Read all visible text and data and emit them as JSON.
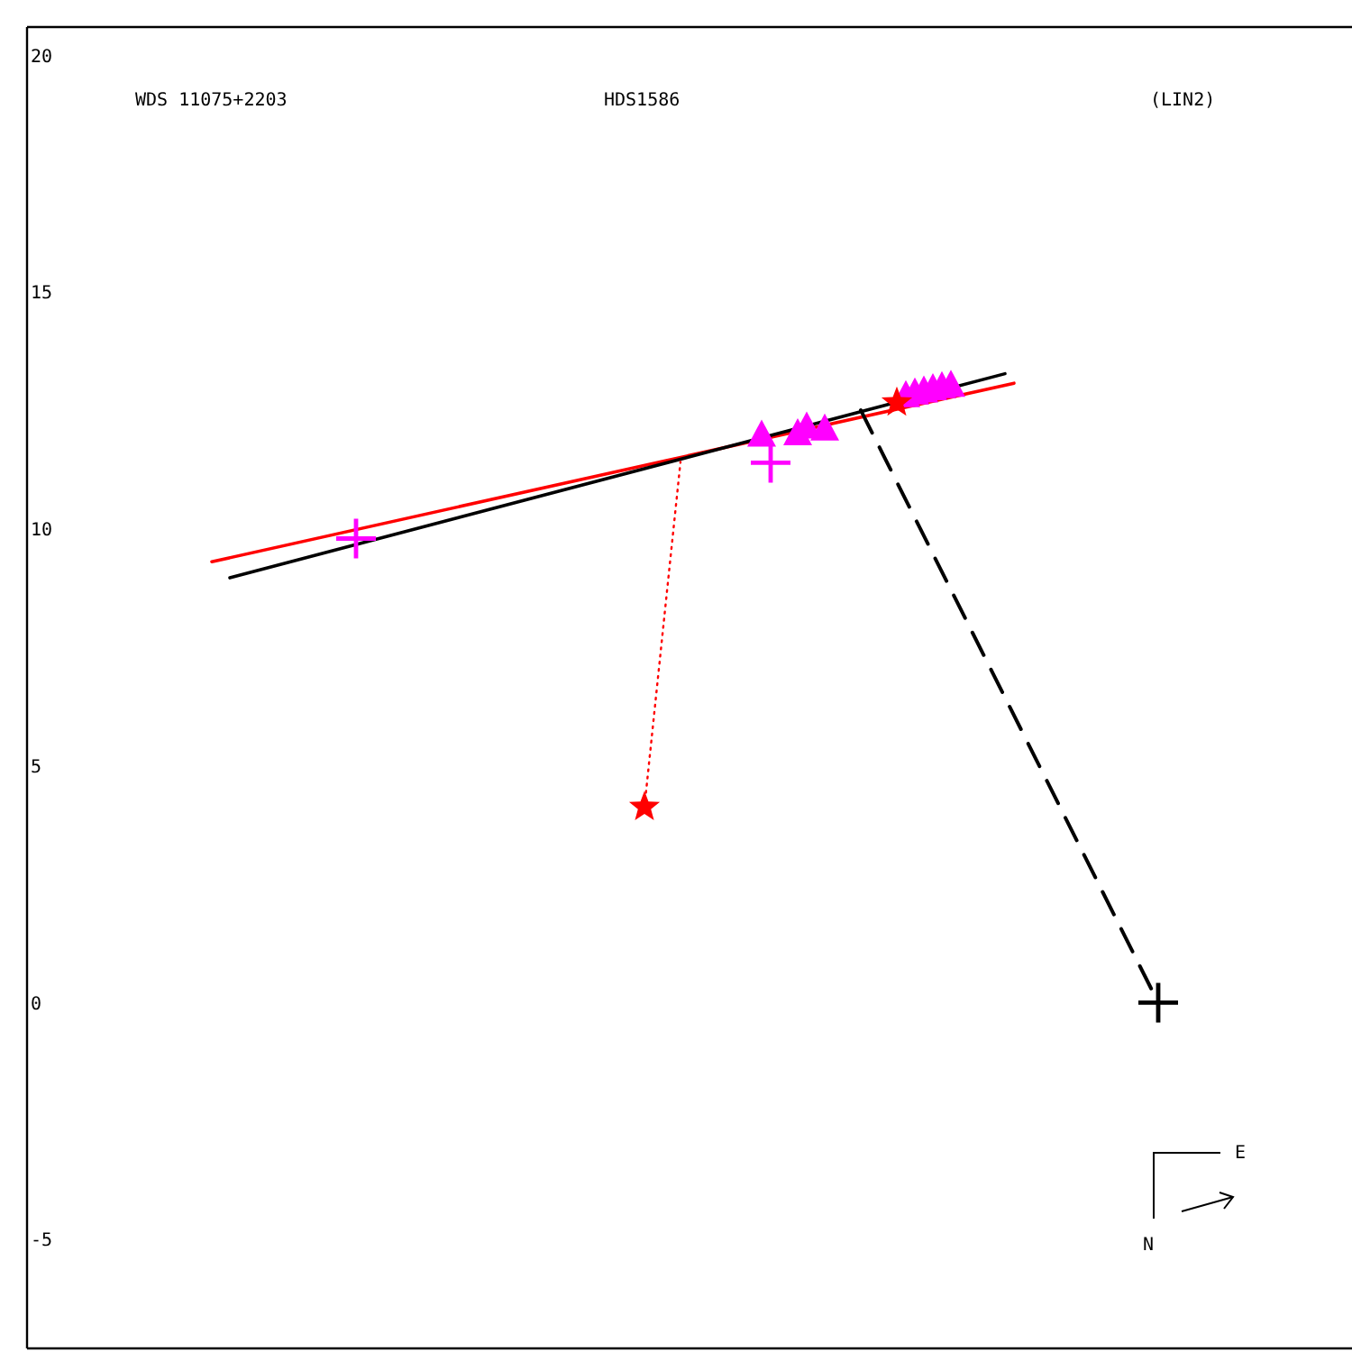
{
  "chart_data": {
    "type": "scatter",
    "title": "WDS 11075+2203",
    "subtitle": "HDS1586",
    "annotations": [
      "(LIN2)",
      "E",
      "N"
    ],
    "categories": [
      null,
      null,
      null,
      null,
      null,
      null,
      null,
      null,
      null,
      null,
      null,
      null,
      null,
      null,
      null,
      null,
      null,
      null,
      null,
      null,
      null,
      null,
      null,
      null,
      null,
      null,
      null,
      null,
      null,
      null,
      null,
      null,
      null,
      null,
      null,
      null,
      null,
      null,
      null,
      null,
      null,
      null,
      null,
      null,
      null,
      null,
      null,
      null,
      null,
      null,
      null,
      null,
      null,
      null,
      null,
      null,
      null,
      null,
      null,
      null,
      null,
      null,
      null,
      null,
      null,
      null,
      null,
      null,
      null,
      null,
      null,
      null,
      null,
      null,
      null,
      null,
      null,
      null,
      null,
      null,
      null,
      null,
      null,
      null,
      null,
      null,
      null,
      null,
      null,
      null,
      null,
      null,
      null,
      null,
      null,
      null,
      null,
      null,
      null,
      null,
      null,
      null,
      null,
      null,
      null,
      null,
      null,
      null,
      null,
      null,
      null,
      null,
      null,
      null,
      null,
      null,
      null,
      null,
      null,
      null,
      null,
      null,
      null,
      null,
      null,
      null,
      null,
      null,
      null,
      null,
      null,
      null,
      null,
      null,
      null,
      null,
      null,
      null,
      null,
      null,
      null,
      null,
      null,
      null,
      null,
      null,
      null
    ],
    "ylim": [
      -7.3,
      20.6
    ],
    "yticks": [
      -5,
      0,
      5,
      10,
      15,
      20
    ],
    "tick_labels": "y",
    "grid": false,
    "series": [
      {
        "type": "scatter",
        "marker": "triangle",
        "color": "#ff00ff",
        "values": [
          null,
          null,
          null,
          null,
          null,
          null,
          null,
          null,
          null,
          null,
          null,
          null,
          null,
          null,
          null,
          null,
          null,
          null,
          null,
          null,
          null,
          null,
          null,
          null,
          null,
          null,
          null,
          null,
          null,
          null,
          null,
          null,
          null,
          null,
          null,
          null,
          null,
          null,
          null,
          null,
          null,
          null,
          null,
          null,
          null,
          null,
          null,
          null,
          null,
          null,
          null,
          null,
          null,
          null,
          null,
          null,
          null,
          null,
          null,
          null,
          null,
          null,
          null,
          null,
          null,
          null,
          null,
          null,
          null,
          null,
          null,
          null,
          null,
          null,
          null,
          null,
          null,
          null,
          null,
          null,
          null,
          11.97,
          null,
          null,
          null,
          12.0,
          12.14,
          null,
          12.1,
          null,
          null,
          null,
          null,
          null,
          null,
          null,
          null,
          12.8,
          12.86,
          12.9,
          12.95,
          12.99,
          13.02,
          null,
          null,
          null,
          null,
          null,
          null,
          null,
          null,
          null,
          null,
          null,
          null,
          null,
          null,
          null,
          null,
          null,
          null,
          null,
          null,
          null,
          null,
          null,
          null,
          null,
          null,
          null,
          null,
          null,
          null,
          null,
          null,
          null,
          null,
          null,
          null,
          null,
          null,
          null,
          null,
          null,
          null,
          null,
          null
        ]
      },
      {
        "type": "scatter",
        "marker": "cross",
        "color": "#ff00ff",
        "values": [
          null,
          null,
          null,
          null,
          null,
          null,
          null,
          null,
          null,
          null,
          null,
          null,
          null,
          null,
          null,
          null,
          null,
          null,
          null,
          null,
          null,
          null,
          null,
          null,
          null,
          null,
          null,
          null,
          null,
          null,
          null,
          null,
          null,
          null,
          null,
          null,
          9.8,
          null,
          null,
          null,
          null,
          null,
          null,
          null,
          null,
          null,
          null,
          null,
          null,
          null,
          null,
          null,
          null,
          null,
          null,
          null,
          null,
          null,
          null,
          null,
          null,
          null,
          null,
          null,
          null,
          null,
          null,
          null,
          null,
          null,
          null,
          null,
          null,
          null,
          null,
          null,
          null,
          null,
          null,
          null,
          null,
          null,
          11.4,
          null,
          null,
          null,
          null,
          null,
          null,
          null,
          null,
          null,
          null,
          null,
          null,
          null,
          null,
          null,
          null,
          null,
          null,
          null,
          null,
          null,
          null,
          null,
          null,
          null,
          null,
          null,
          null,
          null,
          null,
          null,
          null,
          null,
          null,
          null,
          null,
          null,
          null,
          null,
          null,
          null,
          null,
          null,
          null,
          null,
          null,
          null,
          null,
          null,
          null,
          null,
          null,
          null,
          null,
          null,
          null,
          null,
          null,
          null,
          null,
          null,
          null,
          null,
          null
        ]
      },
      {
        "type": "scatter",
        "marker": "star",
        "color": "#ff0000",
        "values": [
          null,
          null,
          null,
          null,
          null,
          null,
          null,
          null,
          null,
          null,
          null,
          null,
          null,
          null,
          null,
          null,
          null,
          null,
          null,
          null,
          null,
          null,
          null,
          null,
          null,
          null,
          null,
          null,
          null,
          null,
          null,
          null,
          null,
          null,
          null,
          null,
          null,
          null,
          null,
          null,
          null,
          null,
          null,
          null,
          null,
          null,
          null,
          null,
          null,
          null,
          null,
          null,
          null,
          null,
          null,
          null,
          null,
          null,
          null,
          null,
          null,
          null,
          null,
          null,
          null,
          null,
          null,
          null,
          4.13,
          null,
          null,
          null,
          null,
          null,
          null,
          null,
          null,
          null,
          null,
          null,
          null,
          null,
          null,
          null,
          null,
          null,
          null,
          null,
          null,
          null,
          null,
          null,
          null,
          null,
          null,
          null,
          12.67,
          null,
          null,
          null,
          null,
          null,
          null,
          null,
          null,
          null,
          null,
          null,
          null,
          null,
          null,
          null,
          null,
          null,
          null,
          null,
          null,
          null,
          null,
          null,
          null,
          null,
          null,
          null,
          null,
          null,
          null,
          null,
          null,
          null,
          null,
          null,
          null,
          null,
          null,
          null,
          null,
          null,
          null,
          null,
          null,
          null,
          null,
          null,
          null,
          null,
          null
        ]
      },
      {
        "type": "line",
        "line_style": "solid",
        "color": "#ff0000",
        "values": [
          null,
          null,
          null,
          null,
          null,
          null,
          null,
          null,
          null,
          null,
          null,
          null,
          null,
          null,
          null,
          null,
          null,
          null,
          null,
          null,
          9.31,
          null,
          null,
          null,
          null,
          null,
          null,
          null,
          null,
          null,
          null,
          null,
          null,
          null,
          null,
          null,
          null,
          null,
          null,
          null,
          null,
          null,
          null,
          null,
          null,
          null,
          null,
          null,
          null,
          null,
          null,
          null,
          null,
          null,
          null,
          null,
          null,
          null,
          null,
          null,
          null,
          null,
          null,
          null,
          null,
          null,
          null,
          null,
          null,
          null,
          null,
          null,
          null,
          null,
          null,
          null,
          null,
          null,
          null,
          null,
          null,
          null,
          null,
          null,
          null,
          null,
          null,
          null,
          null,
          null,
          null,
          null,
          null,
          null,
          null,
          null,
          null,
          null,
          null,
          null,
          null,
          null,
          null,
          null,
          null,
          null,
          null,
          null,
          null,
          13.08,
          null,
          null,
          null,
          null,
          null,
          null,
          null,
          null,
          null,
          null,
          null,
          null,
          null,
          null,
          null,
          null,
          null,
          null,
          null,
          null,
          null,
          null,
          null,
          null,
          null,
          null,
          null,
          null,
          null,
          null,
          null,
          null,
          null,
          null,
          null,
          null,
          null
        ]
      },
      {
        "type": "line",
        "line_style": "solid",
        "color": "#000000",
        "values": [
          null,
          null,
          null,
          null,
          null,
          null,
          null,
          null,
          null,
          null,
          null,
          null,
          null,
          null,
          null,
          null,
          null,
          null,
          null,
          null,
          null,
          null,
          8.97,
          null,
          null,
          null,
          null,
          null,
          null,
          null,
          null,
          null,
          null,
          null,
          null,
          null,
          null,
          null,
          null,
          null,
          null,
          null,
          null,
          null,
          null,
          null,
          null,
          null,
          null,
          null,
          null,
          null,
          null,
          null,
          null,
          null,
          null,
          null,
          null,
          null,
          null,
          null,
          null,
          null,
          null,
          null,
          null,
          null,
          null,
          null,
          null,
          null,
          null,
          null,
          null,
          null,
          null,
          null,
          null,
          null,
          null,
          null,
          null,
          null,
          null,
          null,
          null,
          null,
          null,
          null,
          null,
          null,
          null,
          null,
          null,
          null,
          null,
          null,
          null,
          null,
          null,
          null,
          null,
          null,
          null,
          null,
          null,
          null,
          13.28,
          null,
          null,
          null,
          null,
          null,
          null,
          null,
          null,
          null,
          null,
          null,
          null,
          null,
          null,
          null,
          null,
          null,
          null,
          null,
          null,
          null,
          null,
          null,
          null,
          null,
          null,
          null,
          null,
          null,
          null,
          null,
          null,
          null,
          null,
          null,
          null,
          null,
          null
        ]
      },
      {
        "type": "line",
        "line_style": "dashed",
        "color": "#000000",
        "values": [
          null,
          null,
          null,
          null,
          null,
          null,
          null,
          null,
          null,
          null,
          null,
          null,
          null,
          null,
          null,
          null,
          null,
          null,
          null,
          null,
          null,
          null,
          null,
          null,
          null,
          null,
          null,
          null,
          null,
          null,
          null,
          null,
          null,
          null,
          null,
          null,
          null,
          null,
          null,
          null,
          null,
          null,
          null,
          null,
          null,
          null,
          null,
          null,
          null,
          null,
          null,
          null,
          null,
          null,
          null,
          null,
          null,
          null,
          null,
          null,
          null,
          null,
          null,
          null,
          null,
          null,
          null,
          null,
          null,
          null,
          null,
          null,
          null,
          null,
          null,
          null,
          null,
          null,
          null,
          null,
          null,
          null,
          null,
          null,
          null,
          null,
          null,
          null,
          null,
          null,
          null,
          null,
          12.51,
          null,
          null,
          null,
          null,
          null,
          null,
          null,
          null,
          null,
          null,
          null,
          null,
          null,
          null,
          null,
          null,
          null,
          null,
          null,
          null,
          null,
          null,
          null,
          null,
          null,
          null,
          null,
          null,
          null,
          null,
          null,
          null,
          0,
          null,
          null,
          null,
          null,
          null,
          null,
          null,
          null,
          null,
          null,
          null,
          null,
          null,
          null,
          null,
          null,
          null,
          null,
          null,
          null,
          null
        ]
      },
      {
        "type": "line",
        "line_style": "dotted",
        "color": "#ff0000",
        "values": [
          null,
          null,
          null,
          null,
          null,
          null,
          null,
          null,
          null,
          null,
          null,
          null,
          null,
          null,
          null,
          null,
          null,
          null,
          null,
          null,
          null,
          null,
          null,
          null,
          null,
          null,
          null,
          null,
          null,
          null,
          null,
          null,
          null,
          null,
          null,
          null,
          null,
          null,
          null,
          null,
          null,
          null,
          null,
          null,
          null,
          null,
          null,
          null,
          null,
          null,
          null,
          null,
          null,
          null,
          null,
          null,
          null,
          null,
          null,
          null,
          null,
          null,
          null,
          null,
          null,
          null,
          null,
          null,
          4.13,
          null,
          null,
          null,
          11.42,
          null,
          null,
          null,
          null,
          null,
          null,
          null,
          null,
          null,
          null,
          null,
          null,
          null,
          null,
          null,
          null,
          null,
          null,
          null,
          null,
          null,
          null,
          null,
          null,
          null,
          null,
          null,
          null,
          null,
          null,
          null,
          null,
          null,
          null,
          null,
          null,
          null,
          null,
          null,
          null,
          null,
          null,
          null,
          null,
          null,
          null,
          null,
          null,
          null,
          null,
          null,
          null,
          null,
          null,
          null,
          null,
          null,
          null,
          null,
          null,
          null,
          null,
          null,
          null,
          null,
          null,
          null,
          null,
          null,
          null,
          null,
          null,
          null,
          null
        ]
      },
      {
        "type": "scatter",
        "marker": "cross",
        "color": "#000000",
        "values": [
          null,
          null,
          null,
          null,
          null,
          null,
          null,
          null,
          null,
          null,
          null,
          null,
          null,
          null,
          null,
          null,
          null,
          null,
          null,
          null,
          null,
          null,
          null,
          null,
          null,
          null,
          null,
          null,
          null,
          null,
          null,
          null,
          null,
          null,
          null,
          null,
          null,
          null,
          null,
          null,
          null,
          null,
          null,
          null,
          null,
          null,
          null,
          null,
          null,
          null,
          null,
          null,
          null,
          null,
          null,
          null,
          null,
          null,
          null,
          null,
          null,
          null,
          null,
          null,
          null,
          null,
          null,
          null,
          null,
          null,
          null,
          null,
          null,
          null,
          null,
          null,
          null,
          null,
          null,
          null,
          null,
          null,
          null,
          null,
          null,
          null,
          null,
          null,
          null,
          null,
          null,
          null,
          null,
          null,
          null,
          null,
          null,
          null,
          null,
          null,
          null,
          null,
          null,
          null,
          null,
          null,
          null,
          null,
          null,
          null,
          null,
          null,
          null,
          null,
          null,
          null,
          null,
          null,
          null,
          null,
          null,
          null,
          null,
          null,
          null,
          0,
          null,
          null,
          null,
          null,
          null,
          null,
          null,
          null,
          null,
          null,
          null,
          null,
          null,
          null,
          null,
          null,
          null,
          null,
          null,
          null,
          null
        ]
      }
    ]
  }
}
